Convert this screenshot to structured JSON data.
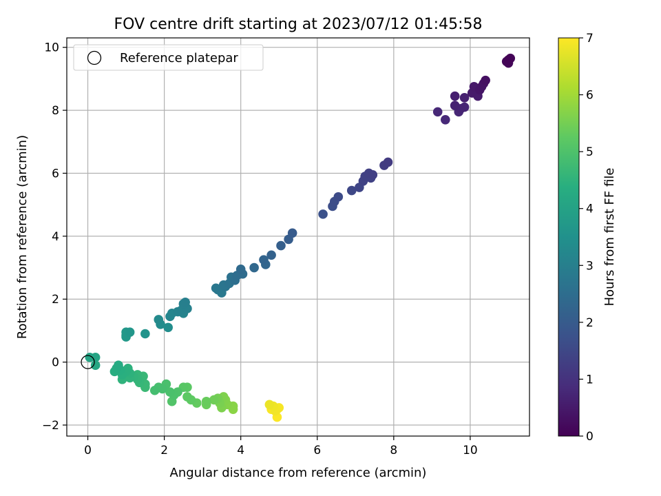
{
  "chart_data": {
    "type": "scatter",
    "title": "FOV centre drift starting at 2023/07/12 01:45:58",
    "xlabel": "Angular distance from reference (arcmin)",
    "ylabel": "Rotation from reference (arcmin)",
    "xlim": [
      -0.55,
      11.55
    ],
    "ylim": [
      -2.35,
      10.3
    ],
    "xticks": [
      0,
      2,
      4,
      6,
      8,
      10
    ],
    "yticks": [
      -2,
      0,
      2,
      4,
      6,
      8,
      10
    ],
    "grid": true,
    "legend": {
      "position": "top-left",
      "entries": [
        "Reference platepar"
      ]
    },
    "reference_point": {
      "x": 0,
      "y": 0
    },
    "colorbar": {
      "label": "Hours from first FF file",
      "colormap": "viridis",
      "range": [
        0,
        7
      ],
      "ticks": [
        0,
        1,
        2,
        3,
        4,
        5,
        6,
        7
      ]
    },
    "series": [
      {
        "points": [
          [
            11.0,
            9.6,
            0.05
          ],
          [
            11.05,
            9.65,
            0.08
          ],
          [
            10.95,
            9.55,
            0.1
          ],
          [
            11.0,
            9.5,
            0.12
          ],
          [
            10.4,
            8.95,
            0.3
          ],
          [
            10.35,
            8.85,
            0.35
          ],
          [
            10.3,
            8.75,
            0.38
          ],
          [
            10.25,
            8.65,
            0.4
          ],
          [
            10.1,
            8.75,
            0.45
          ],
          [
            10.05,
            8.55,
            0.5
          ],
          [
            10.2,
            8.45,
            0.52
          ],
          [
            9.6,
            8.45,
            0.6
          ],
          [
            9.85,
            8.4,
            0.62
          ],
          [
            9.6,
            8.15,
            0.65
          ],
          [
            9.75,
            8.05,
            0.7
          ],
          [
            9.85,
            8.1,
            0.72
          ],
          [
            9.7,
            7.95,
            0.75
          ],
          [
            9.15,
            7.95,
            0.78
          ],
          [
            9.35,
            7.7,
            0.8
          ],
          [
            7.85,
            6.35,
            1.2
          ],
          [
            7.75,
            6.25,
            1.22
          ],
          [
            7.45,
            5.95,
            1.3
          ],
          [
            7.35,
            6.0,
            1.32
          ],
          [
            7.25,
            5.9,
            1.35
          ],
          [
            7.4,
            5.85,
            1.38
          ],
          [
            7.2,
            5.75,
            1.4
          ],
          [
            7.1,
            5.55,
            1.45
          ],
          [
            6.9,
            5.45,
            1.5
          ],
          [
            6.55,
            5.25,
            1.58
          ],
          [
            6.45,
            5.1,
            1.62
          ],
          [
            6.4,
            4.95,
            1.65
          ],
          [
            6.15,
            4.7,
            1.72
          ],
          [
            5.35,
            4.1,
            2.0
          ],
          [
            5.25,
            3.9,
            2.05
          ],
          [
            5.05,
            3.7,
            2.1
          ],
          [
            4.8,
            3.4,
            2.18
          ],
          [
            4.6,
            3.25,
            2.25
          ],
          [
            4.65,
            3.1,
            2.3
          ],
          [
            4.35,
            3.0,
            2.35
          ],
          [
            4.0,
            2.95,
            2.4
          ],
          [
            4.05,
            2.8,
            2.45
          ],
          [
            3.9,
            2.75,
            2.5
          ],
          [
            3.85,
            2.6,
            2.55
          ],
          [
            3.75,
            2.7,
            2.6
          ],
          [
            3.7,
            2.5,
            2.65
          ],
          [
            3.55,
            2.45,
            2.7
          ],
          [
            3.6,
            2.4,
            2.72
          ],
          [
            3.35,
            2.35,
            2.78
          ],
          [
            3.4,
            2.3,
            2.8
          ],
          [
            3.5,
            2.2,
            2.82
          ],
          [
            2.55,
            1.9,
            3.0
          ],
          [
            2.5,
            1.85,
            3.02
          ],
          [
            2.6,
            1.7,
            3.05
          ],
          [
            2.45,
            1.65,
            3.08
          ],
          [
            2.35,
            1.6,
            3.1
          ],
          [
            2.5,
            1.55,
            3.12
          ],
          [
            2.2,
            1.55,
            3.15
          ],
          [
            2.15,
            1.45,
            3.18
          ],
          [
            1.85,
            1.35,
            3.3
          ],
          [
            1.9,
            1.2,
            3.35
          ],
          [
            2.1,
            1.1,
            3.4
          ],
          [
            1.5,
            0.9,
            3.55
          ],
          [
            1.1,
            0.95,
            3.65
          ],
          [
            1.0,
            0.95,
            3.7
          ],
          [
            1.0,
            0.85,
            3.72
          ],
          [
            1.0,
            0.8,
            3.75
          ],
          [
            0.05,
            0.15,
            4.05
          ],
          [
            0.2,
            0.15,
            4.08
          ],
          [
            0.2,
            -0.1,
            4.12
          ],
          [
            0.8,
            -0.1,
            4.25
          ],
          [
            0.75,
            -0.2,
            4.3
          ],
          [
            0.7,
            -0.3,
            4.35
          ],
          [
            0.85,
            -0.25,
            4.38
          ],
          [
            0.9,
            -0.4,
            4.4
          ],
          [
            1.0,
            -0.3,
            4.42
          ],
          [
            1.05,
            -0.2,
            4.45
          ],
          [
            1.1,
            -0.35,
            4.48
          ],
          [
            0.9,
            -0.55,
            4.5
          ],
          [
            1.1,
            -0.5,
            4.52
          ],
          [
            1.2,
            -0.45,
            4.55
          ],
          [
            1.3,
            -0.55,
            4.58
          ],
          [
            1.3,
            -0.4,
            4.6
          ],
          [
            1.35,
            -0.65,
            4.62
          ],
          [
            1.45,
            -0.45,
            4.65
          ],
          [
            1.5,
            -0.7,
            4.68
          ],
          [
            1.5,
            -0.8,
            4.7
          ],
          [
            1.75,
            -0.9,
            4.85
          ],
          [
            1.85,
            -0.8,
            4.88
          ],
          [
            1.95,
            -0.85,
            4.9
          ],
          [
            2.05,
            -0.7,
            4.92
          ],
          [
            2.15,
            -0.95,
            4.95
          ],
          [
            2.25,
            -1.05,
            4.98
          ],
          [
            2.35,
            -0.95,
            5.0
          ],
          [
            2.2,
            -1.25,
            5.05
          ],
          [
            2.5,
            -0.8,
            5.15
          ],
          [
            2.6,
            -0.8,
            5.18
          ],
          [
            2.6,
            -1.1,
            5.22
          ],
          [
            2.7,
            -1.2,
            5.25
          ],
          [
            2.85,
            -1.3,
            5.3
          ],
          [
            3.1,
            -1.25,
            5.35
          ],
          [
            3.1,
            -1.35,
            5.38
          ],
          [
            3.3,
            -1.2,
            5.45
          ],
          [
            3.4,
            -1.15,
            5.5
          ],
          [
            3.45,
            -1.3,
            5.55
          ],
          [
            3.5,
            -1.45,
            5.6
          ],
          [
            3.55,
            -1.1,
            5.62
          ],
          [
            3.6,
            -1.2,
            5.65
          ],
          [
            3.65,
            -1.35,
            5.68
          ],
          [
            3.55,
            -1.3,
            5.7
          ],
          [
            3.8,
            -1.4,
            5.72
          ],
          [
            3.8,
            -1.5,
            5.75
          ],
          [
            4.75,
            -1.35,
            6.8
          ],
          [
            4.85,
            -1.4,
            6.85
          ],
          [
            4.9,
            -1.55,
            6.88
          ],
          [
            4.95,
            -1.5,
            6.9
          ],
          [
            5.0,
            -1.45,
            6.92
          ],
          [
            4.8,
            -1.5,
            6.95
          ],
          [
            4.95,
            -1.75,
            6.98
          ]
        ]
      }
    ]
  }
}
